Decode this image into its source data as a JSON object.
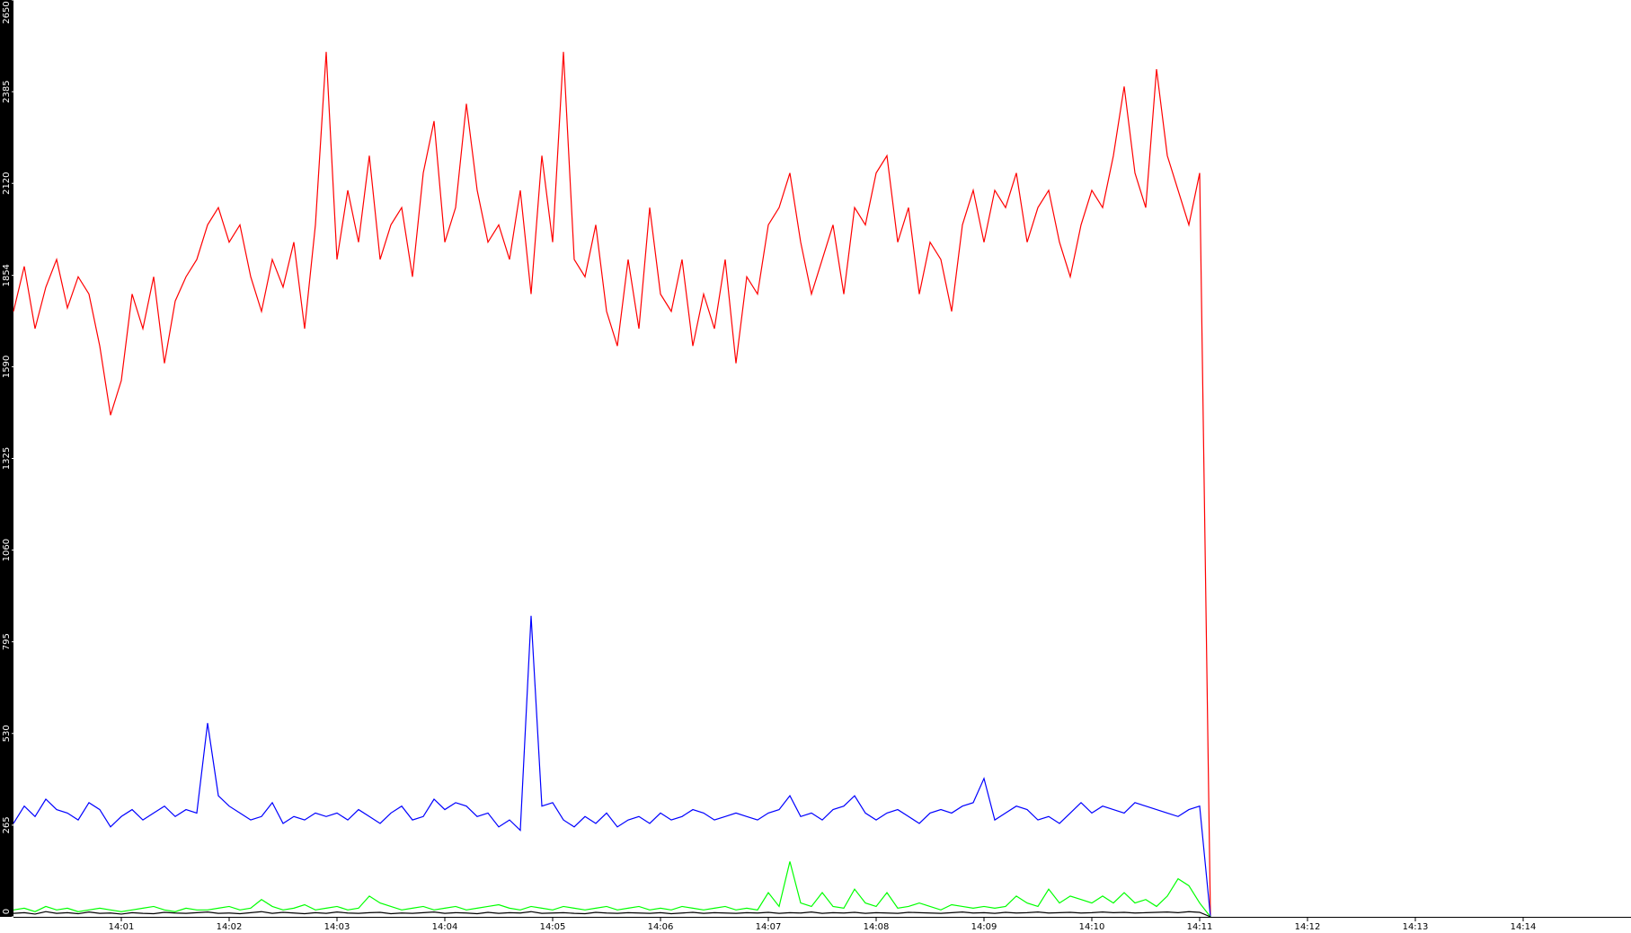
{
  "chart_data": {
    "type": "line",
    "x": [
      840,
      840.1,
      840.2,
      840.3,
      840.4,
      840.5,
      840.6,
      840.7,
      840.8,
      840.9,
      841,
      841.1,
      841.2,
      841.3,
      841.4,
      841.5,
      841.6,
      841.7,
      841.8,
      841.9,
      842,
      842.1,
      842.2,
      842.3,
      842.4,
      842.5,
      842.6,
      842.7,
      842.8,
      842.9,
      843,
      843.1,
      843.2,
      843.3,
      843.4,
      843.5,
      843.6,
      843.7,
      843.8,
      843.9,
      844,
      844.1,
      844.2,
      844.3,
      844.4,
      844.5,
      844.6,
      844.7,
      844.8,
      844.9,
      845,
      845.1,
      845.2,
      845.3,
      845.4,
      845.5,
      845.6,
      845.7,
      845.8,
      845.9,
      846,
      846.1,
      846.2,
      846.3,
      846.4,
      846.5,
      846.6,
      846.7,
      846.8,
      846.9,
      847,
      847.1,
      847.2,
      847.3,
      847.4,
      847.5,
      847.6,
      847.7,
      847.8,
      847.9,
      848,
      848.1,
      848.2,
      848.3,
      848.4,
      848.5,
      848.6,
      848.7,
      848.8,
      848.9,
      849,
      849.1,
      849.2,
      849.3,
      849.4,
      849.5,
      849.6,
      849.7,
      849.8,
      849.9,
      850,
      850.1,
      850.2,
      850.3,
      850.4,
      850.5,
      850.6,
      850.7,
      850.8,
      850.9,
      851,
      851.1
    ],
    "series": [
      {
        "color": "#ff0000",
        "values": [
          1750,
          1880,
          1700,
          1820,
          1900,
          1760,
          1850,
          1800,
          1650,
          1450,
          1550,
          1800,
          1700,
          1850,
          1600,
          1780,
          1850,
          1900,
          2000,
          2050,
          1950,
          2000,
          1850,
          1750,
          1900,
          1820,
          1950,
          1700,
          2000,
          2500,
          1900,
          2100,
          1950,
          2200,
          1900,
          2000,
          2050,
          1850,
          2150,
          2300,
          1950,
          2050,
          2350,
          2100,
          1950,
          2000,
          1900,
          2100,
          1800,
          2200,
          1950,
          2500,
          1900,
          1850,
          2000,
          1750,
          1650,
          1900,
          1700,
          2050,
          1800,
          1750,
          1900,
          1650,
          1800,
          1700,
          1900,
          1600,
          1850,
          1800,
          2000,
          2050,
          2150,
          1950,
          1800,
          1900,
          2000,
          1800,
          2050,
          2000,
          2150,
          2200,
          1950,
          2050,
          1800,
          1950,
          1900,
          1750,
          2000,
          2100,
          1950,
          2100,
          2050,
          2150,
          1950,
          2050,
          2100,
          1950,
          1850,
          2000,
          2100,
          2050,
          2200,
          2400,
          2150,
          2050,
          2450,
          2200,
          2100,
          2000,
          2150,
          0
        ]
      },
      {
        "color": "#0000ff",
        "values": [
          270,
          320,
          290,
          340,
          310,
          300,
          280,
          330,
          310,
          260,
          290,
          310,
          280,
          300,
          320,
          290,
          310,
          300,
          560,
          350,
          320,
          300,
          280,
          290,
          330,
          270,
          290,
          280,
          300,
          290,
          300,
          280,
          310,
          290,
          270,
          300,
          320,
          280,
          290,
          340,
          310,
          330,
          320,
          290,
          300,
          260,
          280,
          250,
          870,
          320,
          330,
          280,
          260,
          290,
          270,
          300,
          260,
          280,
          290,
          270,
          300,
          280,
          290,
          310,
          300,
          280,
          290,
          300,
          290,
          280,
          300,
          310,
          350,
          290,
          300,
          280,
          310,
          320,
          350,
          300,
          280,
          300,
          310,
          290,
          270,
          300,
          310,
          300,
          320,
          330,
          400,
          280,
          300,
          320,
          310,
          280,
          290,
          270,
          300,
          330,
          300,
          320,
          310,
          300,
          330,
          320,
          310,
          300,
          290,
          310,
          320,
          0
        ]
      },
      {
        "color": "#00ff00",
        "values": [
          20,
          25,
          15,
          30,
          20,
          25,
          15,
          20,
          25,
          20,
          15,
          20,
          25,
          30,
          20,
          15,
          25,
          20,
          20,
          25,
          30,
          20,
          25,
          50,
          30,
          20,
          25,
          35,
          20,
          25,
          30,
          20,
          25,
          60,
          40,
          30,
          20,
          25,
          30,
          20,
          25,
          30,
          20,
          25,
          30,
          35,
          25,
          20,
          30,
          25,
          20,
          30,
          25,
          20,
          25,
          30,
          20,
          25,
          30,
          20,
          25,
          20,
          30,
          25,
          20,
          25,
          30,
          20,
          25,
          20,
          70,
          30,
          160,
          40,
          30,
          70,
          30,
          25,
          80,
          40,
          30,
          70,
          25,
          30,
          40,
          30,
          20,
          35,
          30,
          25,
          30,
          25,
          30,
          60,
          40,
          30,
          80,
          40,
          60,
          50,
          40,
          60,
          40,
          70,
          40,
          50,
          30,
          60,
          110,
          90,
          40,
          0
        ]
      },
      {
        "color": "#000000",
        "values": [
          10,
          12,
          8,
          15,
          10,
          12,
          9,
          14,
          10,
          11,
          8,
          12,
          10,
          9,
          13,
          11,
          10,
          12,
          14,
          10,
          11,
          9,
          12,
          15,
          10,
          13,
          11,
          9,
          12,
          10,
          14,
          11,
          10,
          12,
          13,
          9,
          11,
          10,
          12,
          14,
          10,
          12,
          11,
          9,
          13,
          10,
          12,
          11,
          15,
          10,
          11,
          12,
          10,
          9,
          13,
          11,
          10,
          12,
          11,
          10,
          12,
          9,
          11,
          13,
          10,
          12,
          11,
          10,
          12,
          11,
          13,
          10,
          12,
          11,
          14,
          10,
          12,
          11,
          13,
          10,
          12,
          11,
          10,
          13,
          12,
          11,
          10,
          12,
          14,
          11,
          12,
          10,
          13,
          11,
          12,
          14,
          11,
          12,
          13,
          11,
          12,
          14,
          12,
          13,
          11,
          12,
          13,
          14,
          12,
          15,
          13,
          0
        ]
      }
    ],
    "xlim": [
      840,
      855
    ],
    "xticks": [
      {
        "value": 841,
        "label": "14:01"
      },
      {
        "value": 842,
        "label": "14:02"
      },
      {
        "value": 843,
        "label": "14:03"
      },
      {
        "value": 844,
        "label": "14:04"
      },
      {
        "value": 845,
        "label": "14:05"
      },
      {
        "value": 846,
        "label": "14:06"
      },
      {
        "value": 847,
        "label": "14:07"
      },
      {
        "value": 848,
        "label": "14:08"
      },
      {
        "value": 849,
        "label": "14:09"
      },
      {
        "value": 850,
        "label": "14:10"
      },
      {
        "value": 851,
        "label": "14:11"
      },
      {
        "value": 852,
        "label": "14:12"
      },
      {
        "value": 853,
        "label": "14:13"
      },
      {
        "value": 854,
        "label": "14:14"
      }
    ],
    "ylim": [
      0,
      2650
    ],
    "yticks": [
      0,
      265,
      530,
      795,
      1060,
      1325,
      1590,
      1854,
      2120,
      2385,
      2650
    ]
  }
}
